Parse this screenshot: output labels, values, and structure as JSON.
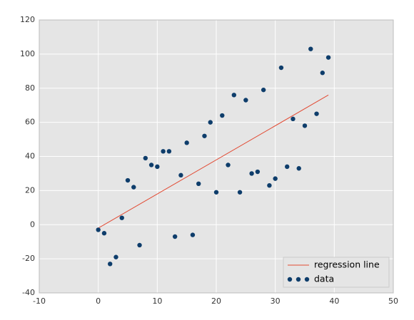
{
  "chart_data": {
    "type": "scatter",
    "xlim": [
      -10,
      50
    ],
    "xticks": [
      -10,
      0,
      10,
      20,
      30,
      40,
      50
    ],
    "ylim": [
      -40,
      120
    ],
    "yticks": [
      -40,
      -20,
      0,
      20,
      40,
      60,
      80,
      100,
      120
    ],
    "grid": true,
    "legend": "lower right",
    "series": [
      {
        "name": "regression line",
        "color": "#e24a33",
        "mode": "line",
        "x": [
          0,
          39
        ],
        "values": [
          -2,
          76
        ]
      },
      {
        "name": "data",
        "color": "#0e3d6b",
        "mode": "markers",
        "x": [
          0,
          1,
          2,
          3,
          4,
          5,
          6,
          7,
          8,
          9,
          10,
          11,
          12,
          13,
          14,
          15,
          16,
          17,
          18,
          19,
          20,
          21,
          22,
          23,
          24,
          25,
          26,
          27,
          28,
          29,
          30,
          31,
          32,
          33,
          34,
          35,
          36,
          37,
          38,
          39
        ],
        "values": [
          -3,
          -5,
          -23,
          -19,
          4,
          26,
          22,
          -12,
          39,
          35,
          34,
          43,
          43,
          -7,
          29,
          48,
          -6,
          24,
          52,
          60,
          19,
          64,
          35,
          76,
          19,
          73,
          30,
          31,
          79,
          23,
          27,
          92,
          34,
          62,
          33,
          58,
          103,
          65,
          89,
          98
        ]
      }
    ]
  }
}
